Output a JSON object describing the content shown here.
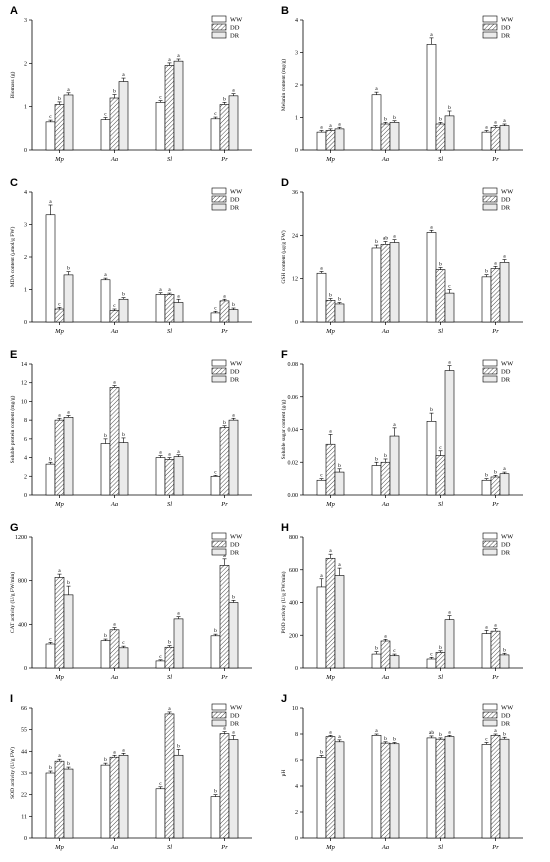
{
  "legend": [
    "WW",
    "DD",
    "DR"
  ],
  "categories": [
    "Mp",
    "Aa",
    "Sl",
    "Pr"
  ],
  "chart_data": [
    {
      "type": "bar",
      "panel": "A",
      "ylabel": "Biomass (g)",
      "ylim": [
        0,
        3
      ],
      "yticks": [
        0,
        1,
        2,
        3
      ],
      "series": [
        {
          "name": "WW",
          "values": [
            0.65,
            0.7,
            1.1,
            0.72
          ]
        },
        {
          "name": "DD",
          "values": [
            1.05,
            1.2,
            1.95,
            1.05
          ]
        },
        {
          "name": "DR",
          "values": [
            1.27,
            1.58,
            2.05,
            1.25
          ]
        }
      ],
      "errors": [
        [
          0.04,
          0.05,
          0.04,
          0.04
        ],
        [
          0.06,
          0.08,
          0.06,
          0.05
        ],
        [
          0.05,
          0.08,
          0.05,
          0.05
        ]
      ],
      "sig": [
        [
          "c",
          "c",
          "c",
          "c"
        ],
        [
          "b",
          "b",
          "a",
          "b"
        ],
        [
          "a",
          "a",
          "a",
          "a"
        ]
      ]
    },
    {
      "type": "bar",
      "panel": "B",
      "ylabel": "Melanin content (mg/g)",
      "ylim": [
        0,
        4
      ],
      "yticks": [
        0,
        1,
        2,
        3,
        4
      ],
      "series": [
        {
          "name": "WW",
          "values": [
            0.55,
            1.7,
            3.25,
            0.55
          ]
        },
        {
          "name": "DD",
          "values": [
            0.6,
            0.8,
            0.8,
            0.7
          ]
        },
        {
          "name": "DR",
          "values": [
            0.65,
            0.85,
            1.05,
            0.75
          ]
        }
      ],
      "errors": [
        [
          0.05,
          0.08,
          0.2,
          0.05
        ],
        [
          0.05,
          0.05,
          0.05,
          0.05
        ],
        [
          0.05,
          0.05,
          0.15,
          0.05
        ]
      ],
      "sig": [
        [
          "a",
          "a",
          "a",
          "a"
        ],
        [
          "a",
          "b",
          "b",
          "a"
        ],
        [
          "a",
          "b",
          "b",
          "a"
        ]
      ]
    },
    {
      "type": "bar",
      "panel": "C",
      "ylabel": "MDA content (μmol/g FW)",
      "ylim": [
        0,
        4
      ],
      "yticks": [
        0,
        1,
        2,
        3,
        4
      ],
      "series": [
        {
          "name": "WW",
          "values": [
            3.3,
            1.3,
            0.85,
            0.28
          ]
        },
        {
          "name": "DD",
          "values": [
            0.4,
            0.35,
            0.85,
            0.65
          ]
        },
        {
          "name": "DR",
          "values": [
            1.45,
            0.7,
            0.6,
            0.38
          ]
        }
      ],
      "errors": [
        [
          0.3,
          0.05,
          0.05,
          0.05
        ],
        [
          0.05,
          0.05,
          0.04,
          0.05
        ],
        [
          0.1,
          0.05,
          0.1,
          0.05
        ]
      ],
      "sig": [
        [
          "a",
          "a",
          "a",
          "c"
        ],
        [
          "c",
          "c",
          "a",
          "a"
        ],
        [
          "b",
          "b",
          "a",
          "b"
        ]
      ]
    },
    {
      "type": "bar",
      "panel": "D",
      "ylabel": "GSH content (μg/g FW)",
      "ylim": [
        0,
        36
      ],
      "yticks": [
        0,
        12,
        24,
        36
      ],
      "series": [
        {
          "name": "WW",
          "values": [
            13.5,
            20.5,
            24.8,
            12.5
          ]
        },
        {
          "name": "DD",
          "values": [
            6,
            21.5,
            14.5,
            14.8
          ]
        },
        {
          "name": "DR",
          "values": [
            5,
            22,
            8,
            16.5
          ]
        }
      ],
      "errors": [
        [
          0.5,
          0.8,
          0.6,
          0.6
        ],
        [
          0.5,
          0.8,
          0.6,
          0.6
        ],
        [
          0.4,
          0.8,
          1.0,
          0.8
        ]
      ],
      "sig": [
        [
          "a",
          "b",
          "a",
          "b"
        ],
        [
          "b",
          "ab",
          "b",
          "a"
        ],
        [
          "b",
          "a",
          "c",
          "a"
        ]
      ]
    },
    {
      "type": "bar",
      "panel": "E",
      "ylabel": "Soluble protein content (mg/g)",
      "ylim": [
        0,
        14
      ],
      "yticks": [
        0,
        2,
        4,
        6,
        8,
        10,
        12,
        14
      ],
      "series": [
        {
          "name": "WW",
          "values": [
            3.3,
            5.5,
            4.0,
            2.0
          ]
        },
        {
          "name": "DD",
          "values": [
            8.0,
            11.5,
            3.8,
            7.2
          ]
        },
        {
          "name": "DR",
          "values": [
            8.3,
            5.6,
            4.1,
            8.0
          ]
        }
      ],
      "errors": [
        [
          0.2,
          0.5,
          0.2,
          0.1
        ],
        [
          0.2,
          0.2,
          0.2,
          0.2
        ],
        [
          0.2,
          0.5,
          0.2,
          0.2
        ]
      ],
      "sig": [
        [
          "b",
          "b",
          "a",
          "c"
        ],
        [
          "a",
          "a",
          "a",
          "b"
        ],
        [
          "a",
          "b",
          "a",
          "a"
        ]
      ]
    },
    {
      "type": "bar",
      "panel": "F",
      "ylabel": "Soluble sugar content (g/g)",
      "ylim": [
        0,
        0.08
      ],
      "yticks": [
        0,
        0.02,
        0.04,
        0.06,
        0.08
      ],
      "tick_labels": [
        "0.00",
        "0.02",
        "0.04",
        "0.06",
        "0.08"
      ],
      "series": [
        {
          "name": "WW",
          "values": [
            0.009,
            0.018,
            0.045,
            0.009
          ]
        },
        {
          "name": "DD",
          "values": [
            0.031,
            0.02,
            0.024,
            0.011
          ]
        },
        {
          "name": "DR",
          "values": [
            0.014,
            0.036,
            0.076,
            0.013
          ]
        }
      ],
      "errors": [
        [
          0.001,
          0.002,
          0.005,
          0.001
        ],
        [
          0.006,
          0.002,
          0.003,
          0.001
        ],
        [
          0.002,
          0.005,
          0.003,
          0.001
        ]
      ],
      "sig": [
        [
          "c",
          "b",
          "b",
          "b"
        ],
        [
          "a",
          "b",
          "c",
          "b"
        ],
        [
          "b",
          "a",
          "a",
          "a"
        ]
      ]
    },
    {
      "type": "bar",
      "panel": "G",
      "ylabel": "CAT activity (U/g FW/min)",
      "ylim": [
        0,
        1200
      ],
      "yticks": [
        0,
        400,
        800,
        1200
      ],
      "series": [
        {
          "name": "WW",
          "values": [
            220,
            250,
            65,
            295
          ]
        },
        {
          "name": "DD",
          "values": [
            830,
            350,
            190,
            940
          ]
        },
        {
          "name": "DR",
          "values": [
            670,
            185,
            450,
            600
          ]
        }
      ],
      "errors": [
        [
          15,
          15,
          10,
          15
        ],
        [
          30,
          20,
          15,
          60
        ],
        [
          80,
          15,
          20,
          20
        ]
      ],
      "sig": [
        [
          "c",
          "b",
          "c",
          "b"
        ],
        [
          "a",
          "a",
          "b",
          "a"
        ],
        [
          "b",
          "c",
          "a",
          "b"
        ]
      ]
    },
    {
      "type": "bar",
      "panel": "H",
      "ylabel": "POD activity (U/g FW/min)",
      "ylim": [
        0,
        800
      ],
      "yticks": [
        0,
        200,
        400,
        600,
        800
      ],
      "series": [
        {
          "name": "WW",
          "values": [
            495,
            85,
            55,
            210
          ]
        },
        {
          "name": "DD",
          "values": [
            670,
            165,
            95,
            225
          ]
        },
        {
          "name": "DR",
          "values": [
            565,
            75,
            295,
            80
          ]
        }
      ],
      "errors": [
        [
          50,
          15,
          10,
          20
        ],
        [
          25,
          10,
          10,
          15
        ],
        [
          45,
          10,
          25,
          10
        ]
      ],
      "sig": [
        [
          "a",
          "b",
          "c",
          "a"
        ],
        [
          "a",
          "a",
          "b",
          "a"
        ],
        [
          "a",
          "c",
          "a",
          "b"
        ]
      ]
    },
    {
      "type": "bar",
      "panel": "I",
      "ylabel": "SOD activity (U/g FW)",
      "ylim": [
        0,
        66
      ],
      "yticks": [
        0,
        11,
        22,
        33,
        44,
        55,
        66
      ],
      "series": [
        {
          "name": "WW",
          "values": [
            33,
            37,
            25,
            21
          ]
        },
        {
          "name": "DD",
          "values": [
            39,
            41,
            63,
            53
          ]
        },
        {
          "name": "DR",
          "values": [
            35,
            42,
            42,
            50
          ]
        }
      ],
      "errors": [
        [
          1,
          1,
          1,
          1
        ],
        [
          1,
          1,
          1,
          1
        ],
        [
          1,
          1,
          3,
          2
        ]
      ],
      "sig": [
        [
          "b",
          "b",
          "c",
          "b"
        ],
        [
          "a",
          "a",
          "a",
          "a"
        ],
        [
          "b",
          "a",
          "b",
          "a"
        ]
      ]
    },
    {
      "type": "bar",
      "panel": "J",
      "ylabel": "pH",
      "ylim": [
        0,
        10
      ],
      "yticks": [
        0,
        2,
        4,
        6,
        8,
        10
      ],
      "series": [
        {
          "name": "WW",
          "values": [
            6.2,
            7.9,
            7.7,
            7.2
          ]
        },
        {
          "name": "DD",
          "values": [
            7.8,
            7.3,
            7.6,
            7.9
          ]
        },
        {
          "name": "DR",
          "values": [
            7.4,
            7.25,
            7.8,
            7.6
          ]
        }
      ],
      "errors": [
        [
          0.15,
          0.1,
          0.15,
          0.15
        ],
        [
          0.1,
          0.1,
          0.1,
          0.1
        ],
        [
          0.15,
          0.1,
          0.1,
          0.15
        ]
      ],
      "sig": [
        [
          "b",
          "a",
          "ab",
          "c"
        ],
        [
          "a",
          "b",
          "b",
          "a"
        ],
        [
          "a",
          "b",
          "a",
          "b"
        ]
      ]
    }
  ],
  "colors": {
    "WW": "#ffffff",
    "DD": "#ffffff",
    "DR": "#ebebeb",
    "ink": "#000000"
  }
}
